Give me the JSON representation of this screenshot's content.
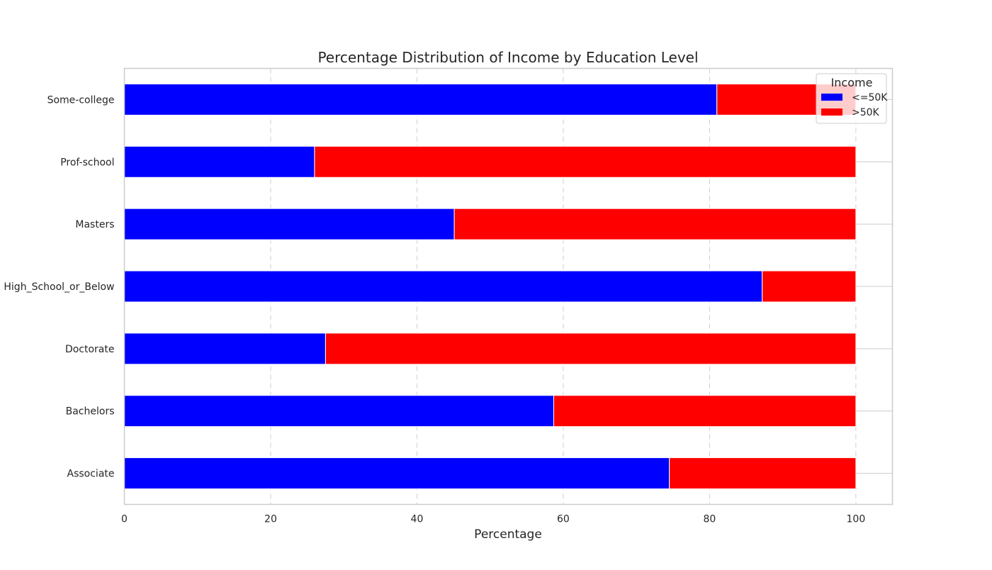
{
  "chart_data": {
    "type": "bar",
    "orientation": "horizontal",
    "stacked": true,
    "title": "Percentage Distribution of Income by Education Level",
    "xlabel": "Percentage",
    "ylabel": "",
    "xlim": [
      0,
      105
    ],
    "xticks": [
      0,
      20,
      40,
      60,
      80,
      100
    ],
    "grid": "x-dashed",
    "categories": [
      "Associate",
      "Bachelors",
      "Doctorate",
      "High_School_or_Below",
      "Masters",
      "Prof-school",
      "Some-college"
    ],
    "series": [
      {
        "name": "<=50K",
        "color": "#0000ff",
        "values": [
          74.5,
          58.7,
          27.5,
          87.2,
          45.1,
          26.0,
          81.0
        ]
      },
      {
        "name": ">50K",
        "color": "#ff0000",
        "values": [
          25.5,
          41.3,
          72.5,
          12.8,
          54.9,
          74.0,
          19.0
        ]
      }
    ],
    "legend": {
      "title": "Income",
      "placement": "top-right"
    }
  }
}
